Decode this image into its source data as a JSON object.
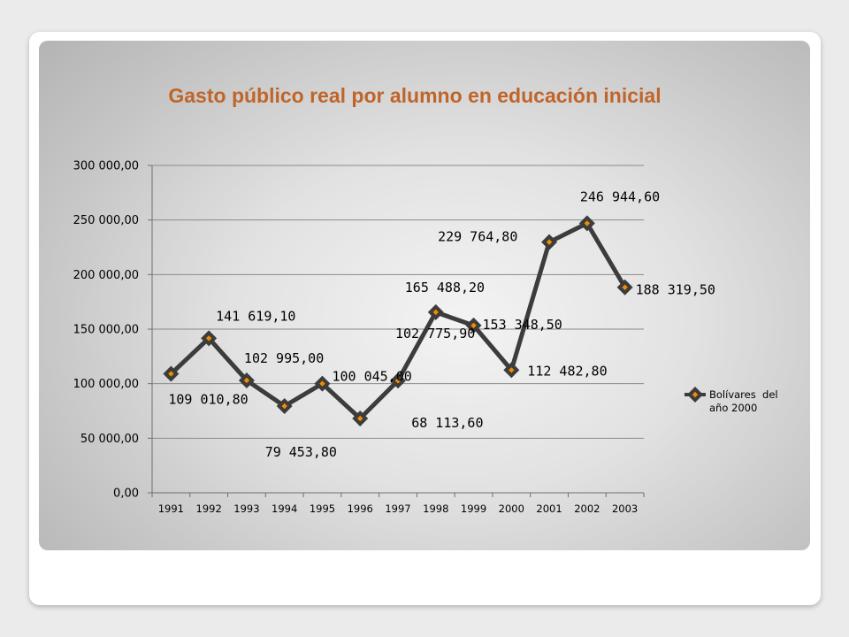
{
  "chart_data": {
    "type": "line",
    "title": "Gasto público real por alumno en educación inicial",
    "categories": [
      "1991",
      "1992",
      "1993",
      "1994",
      "1995",
      "1996",
      "1997",
      "1998",
      "1999",
      "2000",
      "2001",
      "2002",
      "2003"
    ],
    "series": [
      {
        "name": "Bolívares del año 2000",
        "legend_lines": [
          "Bolívares  del",
          "año 2000"
        ],
        "values": [
          109010.8,
          141619.1,
          102995.0,
          79453.8,
          100045.0,
          68113.6,
          102775.9,
          165488.2,
          153348.5,
          112482.8,
          229764.8,
          246944.6,
          188319.5
        ],
        "labels": [
          "109 010,80",
          "141 619,10",
          "102 995,00",
          "79 453,80",
          "100 045,00",
          "68 113,60",
          "102 775,90",
          "165 488,20",
          "153 348,50",
          "112 482,80",
          "229 764,80",
          "246 944,60",
          "188 319,50"
        ],
        "color": "#3c3c3c",
        "marker_color": "#f28c00"
      }
    ],
    "ylim": [
      0,
      300000
    ],
    "yticks": [
      0,
      50000,
      100000,
      150000,
      200000,
      250000,
      300000
    ],
    "ytick_labels": [
      "0,00",
      "50 000,00",
      "100 000,00",
      "150 000,00",
      "200 000,00",
      "250 000,00",
      "300 000,00"
    ],
    "xlabel": "",
    "ylabel": "",
    "grid": true,
    "legend_position": "right",
    "title_color": "#c0652a"
  }
}
